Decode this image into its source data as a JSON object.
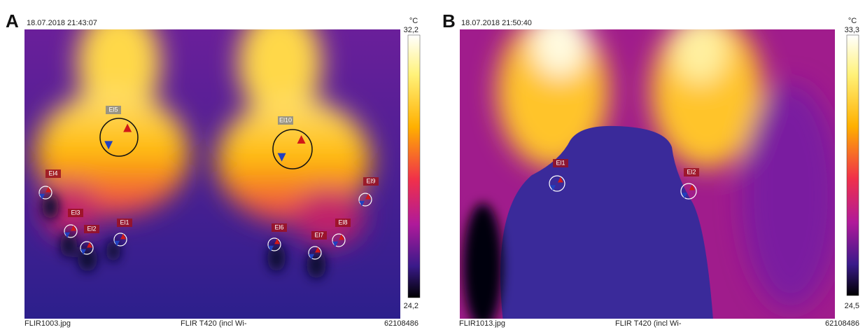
{
  "panels": [
    {
      "label": "A",
      "timestamp": "18.07.2018 21:43:07",
      "unit": "°C",
      "scale_max": "32,2",
      "scale_min": "24,2",
      "file": "FLIR1003.jpg",
      "camera": "FLIR T420 (incl Wi-",
      "serial": "62108486",
      "markers": [
        "El5",
        "El10",
        "El4",
        "El3",
        "El2",
        "El1",
        "El6",
        "El7",
        "El8",
        "El9"
      ]
    },
    {
      "label": "B",
      "timestamp": "18.07.2018 21:50:40",
      "unit": "°C",
      "scale_max": "33,3",
      "scale_min": "24,5",
      "file": "FLIR1013.jpg",
      "camera": "FLIR T420 (incl Wi-",
      "serial": "62108486",
      "markers": [
        "El1",
        "El2"
      ]
    }
  ]
}
